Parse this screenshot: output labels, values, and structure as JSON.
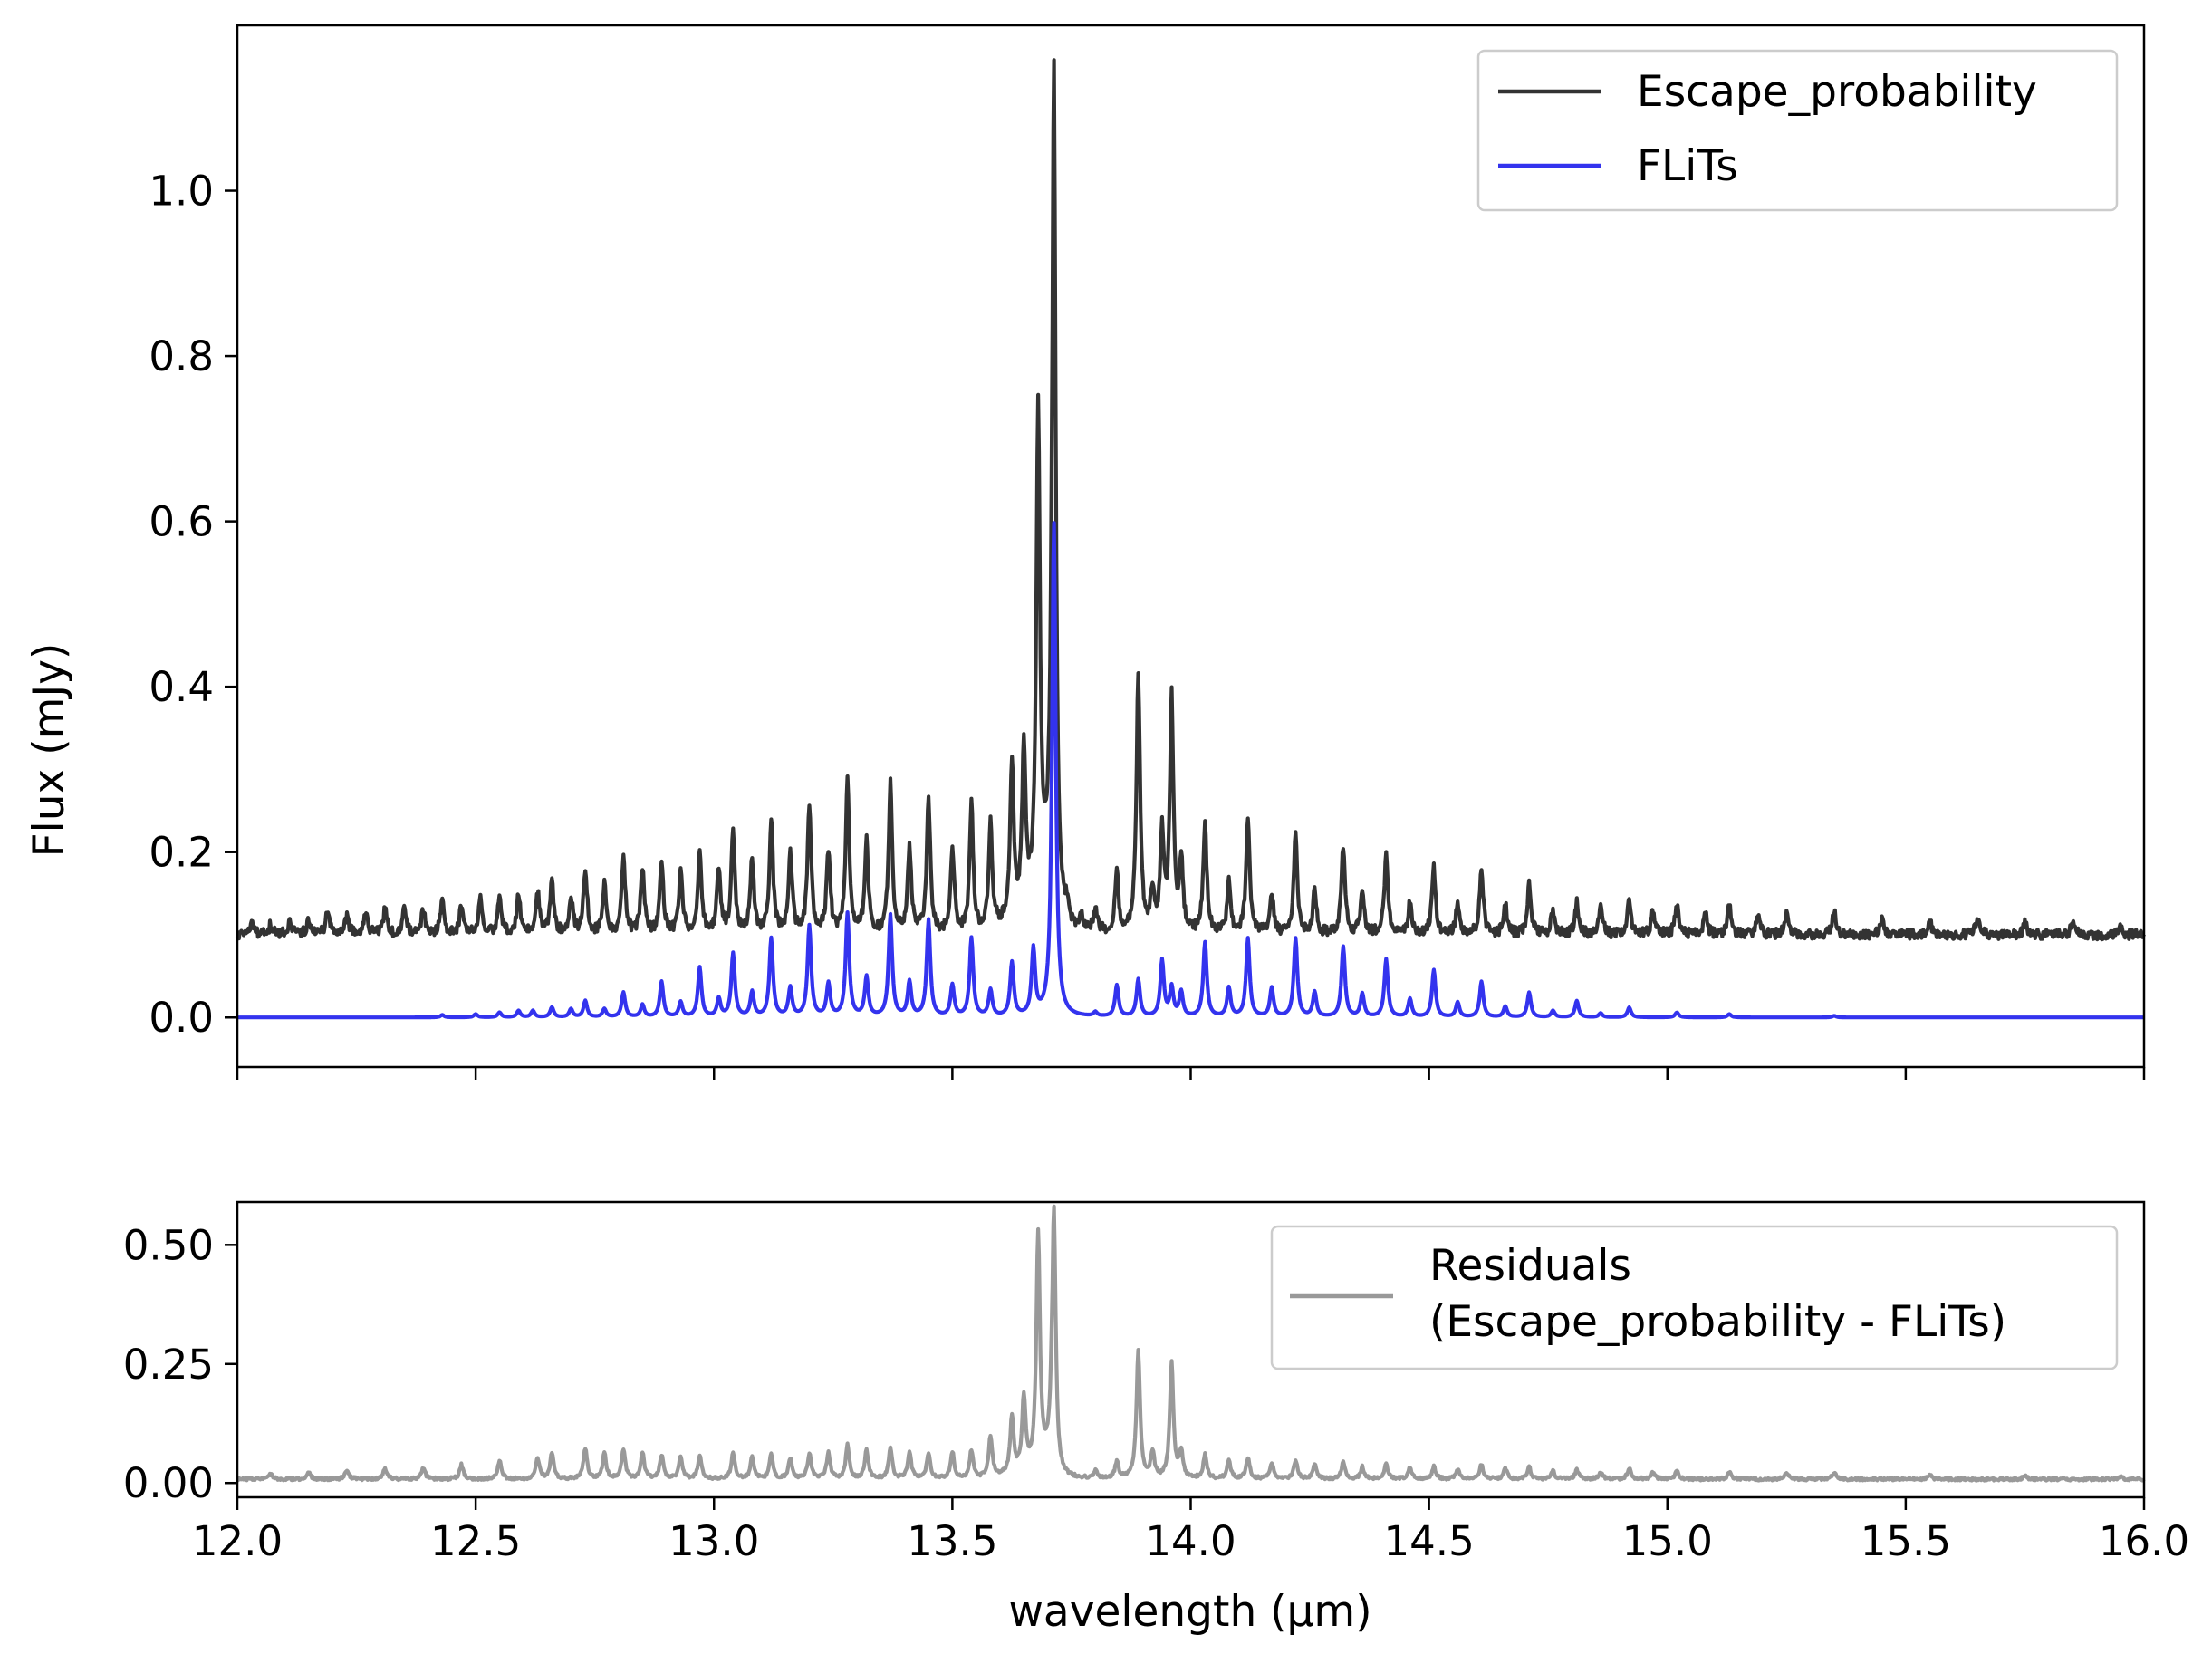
{
  "chart_data": [
    {
      "type": "line",
      "ylabel": "Flux (mJy)",
      "xlim": [
        12.0,
        16.0
      ],
      "ylim": [
        -0.06,
        1.2
      ],
      "yticks": [
        "0.0",
        "0.2",
        "0.4",
        "0.6",
        "0.8",
        "1.0"
      ],
      "ytick_values": [
        0.0,
        0.2,
        0.4,
        0.6,
        0.8,
        1.0
      ],
      "legend_position": "top-right",
      "grid": false,
      "series": [
        {
          "name": "Escape_probability",
          "color": "#333333",
          "baseline": 0.1,
          "peaks": [
            [
              12.03,
              0.113
            ],
            [
              12.07,
              0.112
            ],
            [
              12.11,
              0.117
            ],
            [
              12.15,
              0.12
            ],
            [
              12.19,
              0.132
            ],
            [
              12.23,
              0.122
            ],
            [
              12.27,
              0.127
            ],
            [
              12.31,
              0.13
            ],
            [
              12.35,
              0.133
            ],
            [
              12.39,
              0.13
            ],
            [
              12.43,
              0.14
            ],
            [
              12.47,
              0.135
            ],
            [
              12.51,
              0.145
            ],
            [
              12.55,
              0.15
            ],
            [
              12.59,
              0.148
            ],
            [
              12.63,
              0.15
            ],
            [
              12.66,
              0.165
            ],
            [
              12.7,
              0.145
            ],
            [
              12.73,
              0.18
            ],
            [
              12.77,
              0.16
            ],
            [
              12.81,
              0.195
            ],
            [
              12.85,
              0.18
            ],
            [
              12.89,
              0.19
            ],
            [
              12.93,
              0.175
            ],
            [
              12.97,
              0.2
            ],
            [
              13.01,
              0.18
            ],
            [
              13.04,
              0.22
            ],
            [
              13.08,
              0.19
            ],
            [
              13.12,
              0.24
            ],
            [
              13.16,
              0.2
            ],
            [
              13.2,
              0.255
            ],
            [
              13.24,
              0.2
            ],
            [
              13.28,
              0.29
            ],
            [
              13.32,
              0.21
            ],
            [
              13.37,
              0.28
            ],
            [
              13.41,
              0.2
            ],
            [
              13.45,
              0.262
            ],
            [
              13.5,
              0.205
            ],
            [
              13.54,
              0.255
            ],
            [
              13.58,
              0.225
            ],
            [
              13.625,
              0.29
            ],
            [
              13.65,
              0.3
            ],
            [
              13.68,
              0.7
            ],
            [
              13.713,
              1.145
            ],
            [
              13.74,
              0.12
            ],
            [
              13.77,
              0.115
            ],
            [
              13.8,
              0.125
            ],
            [
              13.845,
              0.17
            ],
            [
              13.89,
              0.412
            ],
            [
              13.92,
              0.15
            ],
            [
              13.94,
              0.218
            ],
            [
              13.96,
              0.382
            ],
            [
              13.98,
              0.185
            ],
            [
              14.03,
              0.232
            ],
            [
              14.08,
              0.16
            ],
            [
              14.12,
              0.237
            ],
            [
              14.17,
              0.15
            ],
            [
              14.22,
              0.222
            ],
            [
              14.26,
              0.15
            ],
            [
              14.32,
              0.205
            ],
            [
              14.36,
              0.15
            ],
            [
              14.41,
              0.197
            ],
            [
              14.46,
              0.14
            ],
            [
              14.51,
              0.18
            ],
            [
              14.56,
              0.14
            ],
            [
              14.61,
              0.178
            ],
            [
              14.66,
              0.135
            ],
            [
              14.71,
              0.162
            ],
            [
              14.76,
              0.13
            ],
            [
              14.81,
              0.14
            ],
            [
              14.86,
              0.135
            ],
            [
              14.92,
              0.14
            ],
            [
              14.97,
              0.13
            ],
            [
              15.02,
              0.137
            ],
            [
              15.08,
              0.125
            ],
            [
              15.13,
              0.135
            ],
            [
              15.19,
              0.122
            ],
            [
              15.25,
              0.125
            ],
            [
              15.35,
              0.128
            ],
            [
              15.45,
              0.12
            ],
            [
              15.55,
              0.118
            ],
            [
              15.65,
              0.12
            ],
            [
              15.75,
              0.115
            ],
            [
              15.85,
              0.115
            ],
            [
              15.95,
              0.11
            ]
          ],
          "peak_max": 1.145
        },
        {
          "name": "FLiTs",
          "color": "#3333ee",
          "baseline": 0.0,
          "peaks": [
            [
              12.43,
              0.003
            ],
            [
              12.5,
              0.004
            ],
            [
              12.55,
              0.006
            ],
            [
              12.59,
              0.008
            ],
            [
              12.62,
              0.008
            ],
            [
              12.66,
              0.012
            ],
            [
              12.7,
              0.01
            ],
            [
              12.73,
              0.02
            ],
            [
              12.77,
              0.01
            ],
            [
              12.81,
              0.03
            ],
            [
              12.85,
              0.015
            ],
            [
              12.89,
              0.043
            ],
            [
              12.93,
              0.018
            ],
            [
              12.97,
              0.06
            ],
            [
              13.01,
              0.022
            ],
            [
              13.04,
              0.077
            ],
            [
              13.08,
              0.03
            ],
            [
              13.12,
              0.095
            ],
            [
              13.16,
              0.035
            ],
            [
              13.2,
              0.11
            ],
            [
              13.24,
              0.04
            ],
            [
              13.28,
              0.125
            ],
            [
              13.32,
              0.048
            ],
            [
              13.37,
              0.123
            ],
            [
              13.41,
              0.042
            ],
            [
              13.45,
              0.117
            ],
            [
              13.5,
              0.038
            ],
            [
              13.54,
              0.095
            ],
            [
              13.58,
              0.032
            ],
            [
              13.625,
              0.065
            ],
            [
              13.67,
              0.08
            ],
            [
              13.713,
              0.6
            ],
            [
              13.8,
              0.005
            ],
            [
              13.845,
              0.038
            ],
            [
              13.89,
              0.045
            ],
            [
              13.94,
              0.068
            ],
            [
              13.96,
              0.035
            ],
            [
              13.98,
              0.03
            ],
            [
              14.03,
              0.09
            ],
            [
              14.08,
              0.035
            ],
            [
              14.12,
              0.095
            ],
            [
              14.17,
              0.035
            ],
            [
              14.22,
              0.095
            ],
            [
              14.26,
              0.03
            ],
            [
              14.32,
              0.085
            ],
            [
              14.36,
              0.028
            ],
            [
              14.41,
              0.07
            ],
            [
              14.46,
              0.022
            ],
            [
              14.51,
              0.057
            ],
            [
              14.56,
              0.018
            ],
            [
              14.61,
              0.043
            ],
            [
              14.66,
              0.013
            ],
            [
              14.71,
              0.03
            ],
            [
              14.76,
              0.008
            ],
            [
              14.81,
              0.02
            ],
            [
              14.86,
              0.005
            ],
            [
              14.92,
              0.012
            ],
            [
              15.02,
              0.006
            ],
            [
              15.13,
              0.004
            ],
            [
              15.35,
              0.002
            ]
          ],
          "peak_max": 0.6
        }
      ]
    },
    {
      "type": "line",
      "xlabel": "wavelength (µm)",
      "xlim": [
        12.0,
        16.0
      ],
      "ylim": [
        -0.03,
        0.59
      ],
      "xticks": [
        "12.0",
        "12.5",
        "13.0",
        "13.5",
        "14.0",
        "14.5",
        "15.0",
        "15.5",
        "16.0"
      ],
      "xtick_values": [
        12.0,
        12.5,
        13.0,
        13.5,
        14.0,
        14.5,
        15.0,
        15.5,
        16.0
      ],
      "yticks": [
        "0.00",
        "0.25",
        "0.50"
      ],
      "ytick_values": [
        0.0,
        0.25,
        0.5
      ],
      "legend_position": "top-right",
      "grid": false,
      "series": [
        {
          "name": "Residuals\n(Escape_probability - FLiTs)",
          "legend_lines": [
            "Residuals",
            "(Escape_probability - FLiTs)"
          ],
          "color": "#999999",
          "baseline": 0.005,
          "peaks": [
            [
              12.07,
              0.015
            ],
            [
              12.15,
              0.02
            ],
            [
              12.23,
              0.025
            ],
            [
              12.31,
              0.028
            ],
            [
              12.39,
              0.03
            ],
            [
              12.47,
              0.035
            ],
            [
              12.55,
              0.045
            ],
            [
              12.63,
              0.05
            ],
            [
              12.66,
              0.06
            ],
            [
              12.73,
              0.07
            ],
            [
              12.77,
              0.06
            ],
            [
              12.81,
              0.068
            ],
            [
              12.85,
              0.06
            ],
            [
              12.89,
              0.055
            ],
            [
              12.93,
              0.052
            ],
            [
              12.97,
              0.055
            ],
            [
              13.04,
              0.06
            ],
            [
              13.08,
              0.05
            ],
            [
              13.12,
              0.055
            ],
            [
              13.16,
              0.048
            ],
            [
              13.2,
              0.058
            ],
            [
              13.24,
              0.06
            ],
            [
              13.28,
              0.075
            ],
            [
              13.32,
              0.065
            ],
            [
              13.37,
              0.07
            ],
            [
              13.41,
              0.06
            ],
            [
              13.45,
              0.06
            ],
            [
              13.5,
              0.062
            ],
            [
              13.54,
              0.065
            ],
            [
              13.58,
              0.09
            ],
            [
              13.625,
              0.125
            ],
            [
              13.65,
              0.16
            ],
            [
              13.68,
              0.495
            ],
            [
              13.713,
              0.57
            ],
            [
              13.8,
              0.02
            ],
            [
              13.845,
              0.04
            ],
            [
              13.89,
              0.272
            ],
            [
              13.92,
              0.06
            ],
            [
              13.96,
              0.25
            ],
            [
              13.98,
              0.06
            ],
            [
              14.03,
              0.055
            ],
            [
              14.08,
              0.045
            ],
            [
              14.12,
              0.05
            ],
            [
              14.17,
              0.04
            ],
            [
              14.22,
              0.045
            ],
            [
              14.26,
              0.035
            ],
            [
              14.32,
              0.04
            ],
            [
              14.36,
              0.03
            ],
            [
              14.41,
              0.035
            ],
            [
              14.46,
              0.028
            ],
            [
              14.51,
              0.032
            ],
            [
              14.56,
              0.025
            ],
            [
              14.61,
              0.035
            ],
            [
              14.66,
              0.028
            ],
            [
              14.71,
              0.03
            ],
            [
              14.76,
              0.022
            ],
            [
              14.81,
              0.025
            ],
            [
              14.86,
              0.02
            ],
            [
              14.92,
              0.028
            ],
            [
              14.97,
              0.02
            ],
            [
              15.02,
              0.022
            ],
            [
              15.13,
              0.02
            ],
            [
              15.25,
              0.018
            ],
            [
              15.35,
              0.02
            ],
            [
              15.55,
              0.015
            ],
            [
              15.75,
              0.012
            ],
            [
              15.95,
              0.01
            ]
          ],
          "peak_max": 0.57
        }
      ]
    }
  ]
}
